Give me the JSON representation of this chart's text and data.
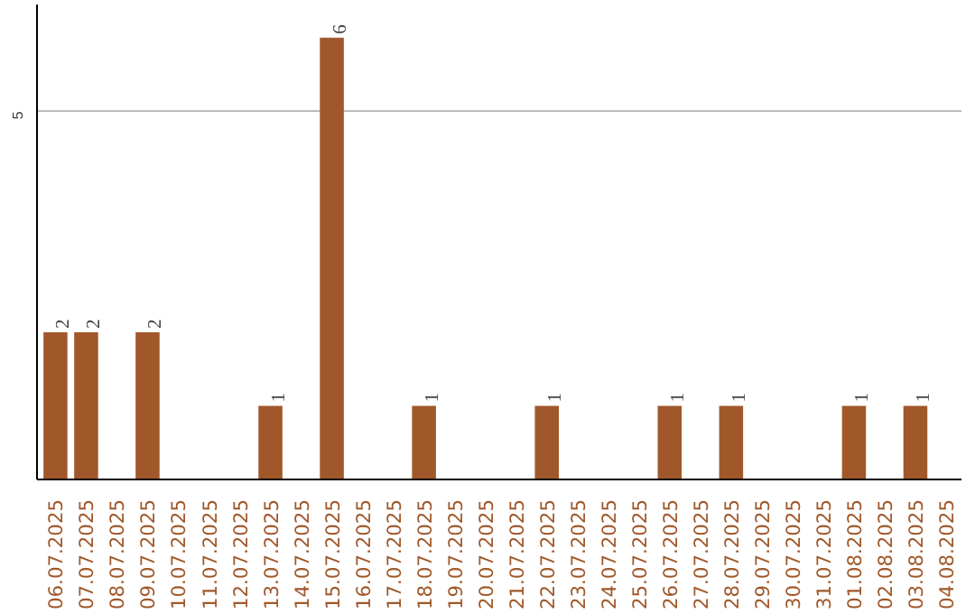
{
  "chart_data": {
    "type": "bar",
    "categories": [
      "06.07.2025",
      "07.07.2025",
      "08.07.2025",
      "09.07.2025",
      "10.07.2025",
      "11.07.2025",
      "12.07.2025",
      "13.07.2025",
      "14.07.2025",
      "15.07.2025",
      "16.07.2025",
      "17.07.2025",
      "18.07.2025",
      "19.07.2025",
      "20.07.2025",
      "21.07.2025",
      "22.07.2025",
      "23.07.2025",
      "24.07.2025",
      "25.07.2025",
      "26.07.2025",
      "27.07.2025",
      "28.07.2025",
      "29.07.2025",
      "30.07.2025",
      "31.07.2025",
      "01.08.2025",
      "02.08.2025",
      "03.08.2025",
      "04.08.2025"
    ],
    "values": [
      2,
      2,
      0,
      2,
      0,
      0,
      0,
      1,
      0,
      6,
      0,
      0,
      1,
      0,
      0,
      0,
      1,
      0,
      0,
      0,
      1,
      0,
      1,
      0,
      0,
      0,
      1,
      0,
      1,
      0
    ],
    "value_labels": [
      "2",
      "2",
      null,
      "2",
      null,
      null,
      null,
      "1",
      null,
      "6",
      null,
      null,
      "1",
      null,
      null,
      null,
      "1",
      null,
      null,
      null,
      "1",
      null,
      "1",
      null,
      null,
      null,
      "1",
      null,
      "1",
      null
    ],
    "color": "#a0582a",
    "ylim": [
      0,
      6.45
    ],
    "yticks": [
      5
    ],
    "grid": "y"
  }
}
